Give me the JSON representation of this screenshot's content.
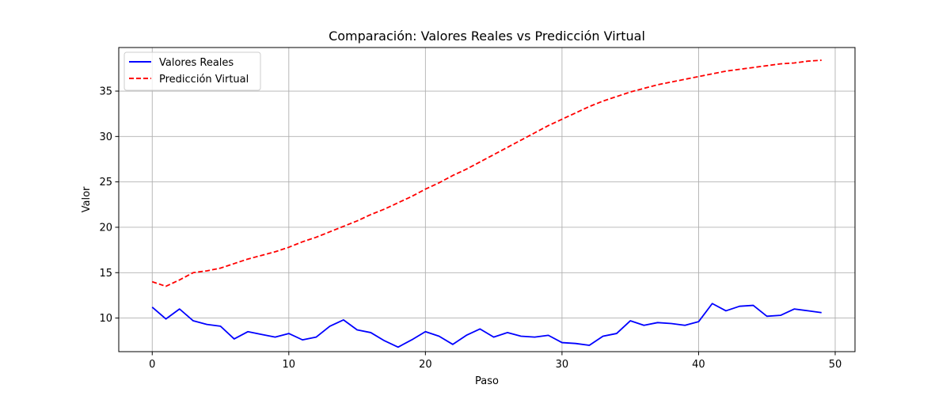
{
  "chart_data": {
    "type": "line",
    "title": "Comparación: Valores Reales vs Predicción Virtual",
    "xlabel": "Paso",
    "ylabel": "Valor",
    "xlim": [
      -2.45,
      51.45
    ],
    "ylim": [
      6.3,
      39.8
    ],
    "xticks": [
      0,
      10,
      20,
      30,
      40,
      50
    ],
    "yticks": [
      10,
      15,
      20,
      25,
      30,
      35
    ],
    "grid": true,
    "legend_position": "top-left",
    "x": [
      0,
      1,
      2,
      3,
      4,
      5,
      6,
      7,
      8,
      9,
      10,
      11,
      12,
      13,
      14,
      15,
      16,
      17,
      18,
      19,
      20,
      21,
      22,
      23,
      24,
      25,
      26,
      27,
      28,
      29,
      30,
      31,
      32,
      33,
      34,
      35,
      36,
      37,
      38,
      39,
      40,
      41,
      42,
      43,
      44,
      45,
      46,
      47,
      48,
      49
    ],
    "series": [
      {
        "name": "Valores Reales",
        "color": "#0000ff",
        "style": "solid",
        "values": [
          11.2,
          9.9,
          11.0,
          9.7,
          9.3,
          9.1,
          7.7,
          8.5,
          8.2,
          7.9,
          8.3,
          7.6,
          7.9,
          9.1,
          9.8,
          8.7,
          8.4,
          7.5,
          6.8,
          7.6,
          8.5,
          8.0,
          7.1,
          8.1,
          8.8,
          7.9,
          8.4,
          8.0,
          7.9,
          8.1,
          7.3,
          7.2,
          7.0,
          8.0,
          8.3,
          9.7,
          9.2,
          9.5,
          9.4,
          9.2,
          9.6,
          11.6,
          10.8,
          11.3,
          11.4,
          10.2,
          10.3,
          11.0,
          10.8,
          10.6
        ]
      },
      {
        "name": "Predicción Virtual",
        "color": "#ff0000",
        "style": "dashed",
        "values": [
          14.0,
          13.5,
          14.2,
          15.0,
          15.2,
          15.5,
          16.0,
          16.5,
          16.9,
          17.3,
          17.8,
          18.4,
          18.9,
          19.5,
          20.1,
          20.7,
          21.4,
          22.0,
          22.7,
          23.4,
          24.2,
          24.9,
          25.7,
          26.4,
          27.2,
          28.0,
          28.8,
          29.6,
          30.4,
          31.2,
          31.9,
          32.6,
          33.3,
          33.9,
          34.4,
          34.9,
          35.3,
          35.7,
          36.0,
          36.3,
          36.6,
          36.9,
          37.2,
          37.4,
          37.6,
          37.8,
          38.0,
          38.1,
          38.3,
          38.4
        ]
      }
    ]
  }
}
